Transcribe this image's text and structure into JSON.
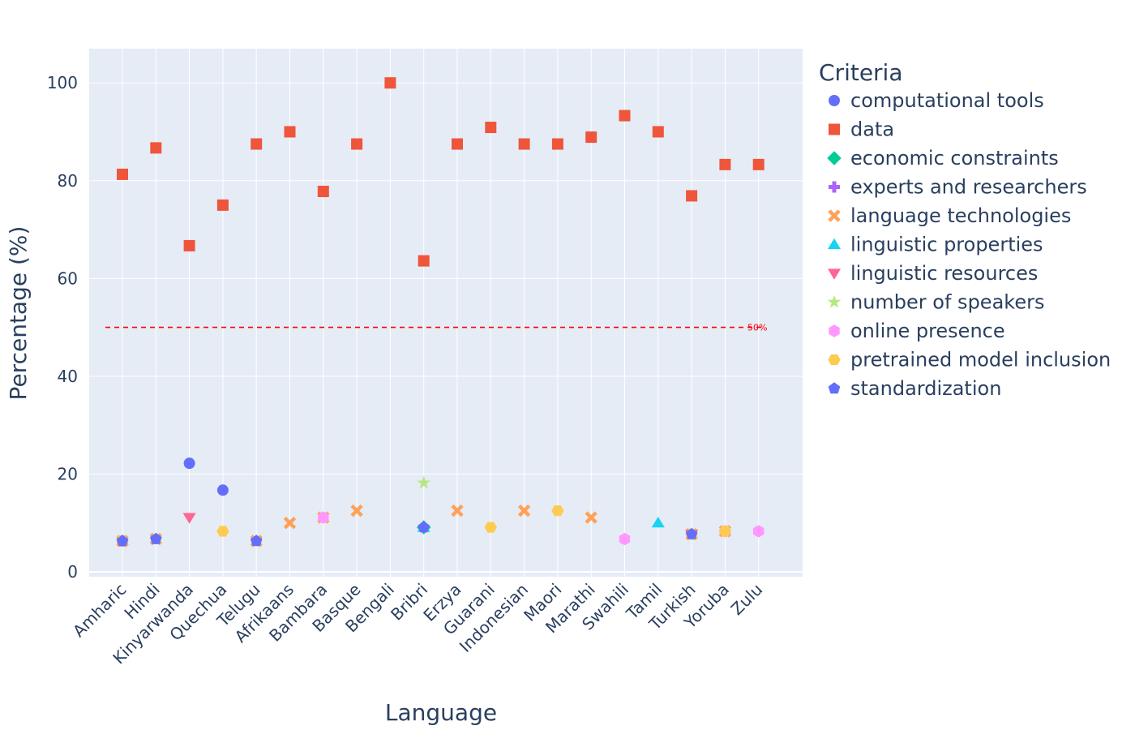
{
  "chart_data": {
    "type": "scatter",
    "title": "",
    "xlabel": "Language",
    "ylabel": "Percentage (%)",
    "ylim": [
      -1,
      107
    ],
    "yticks": [
      0,
      20,
      40,
      60,
      80,
      100
    ],
    "categories": [
      "Amharic",
      "Hindi",
      "Kinyarwanda",
      "Quechua",
      "Telugu",
      "Afrikaans",
      "Bambara",
      "Basque",
      "Bengali",
      "Bribri",
      "Erzya",
      "Guarani",
      "Indonesian",
      "Maori",
      "Marathi",
      "Swahili",
      "Tamil",
      "Turkish",
      "Yoruba",
      "Zulu"
    ],
    "reference_line": {
      "value": 50,
      "label": "50%",
      "color": "#ff0000"
    },
    "legend": {
      "title": "Criteria",
      "position": "right"
    },
    "series": [
      {
        "name": "computational tools",
        "symbol": "circle",
        "color": "#636efa",
        "points": [
          [
            "Amharic",
            6.3
          ],
          [
            "Kinyarwanda",
            22.2
          ],
          [
            "Quechua",
            16.7
          ]
        ]
      },
      {
        "name": "data",
        "symbol": "square",
        "color": "#ef553b",
        "points": [
          [
            "Amharic",
            81.3
          ],
          [
            "Hindi",
            86.7
          ],
          [
            "Kinyarwanda",
            66.7
          ],
          [
            "Quechua",
            75
          ],
          [
            "Telugu",
            87.5
          ],
          [
            "Afrikaans",
            90
          ],
          [
            "Bambara",
            77.8
          ],
          [
            "Basque",
            87.5
          ],
          [
            "Bengali",
            100
          ],
          [
            "Bribri",
            63.6
          ],
          [
            "Erzya",
            87.5
          ],
          [
            "Guarani",
            90.9
          ],
          [
            "Indonesian",
            87.5
          ],
          [
            "Maori",
            87.5
          ],
          [
            "Marathi",
            88.9
          ],
          [
            "Swahili",
            93.3
          ],
          [
            "Tamil",
            90
          ],
          [
            "Turkish",
            76.9
          ],
          [
            "Yoruba",
            83.3
          ],
          [
            "Zulu",
            83.3
          ]
        ]
      },
      {
        "name": "economic constraints",
        "symbol": "diamond",
        "color": "#00cc96",
        "points": [
          [
            "Bribri",
            9.1
          ]
        ]
      },
      {
        "name": "experts and researchers",
        "symbol": "cross",
        "color": "#ab63fa",
        "points": [
          [
            "Amharic",
            6.3
          ]
        ]
      },
      {
        "name": "language technologies",
        "symbol": "x",
        "color": "#ffa15a",
        "points": [
          [
            "Amharic",
            6.3
          ],
          [
            "Hindi",
            6.7
          ],
          [
            "Telugu",
            6.3
          ],
          [
            "Afrikaans",
            10
          ],
          [
            "Bambara",
            11.1
          ],
          [
            "Basque",
            12.5
          ],
          [
            "Erzya",
            12.5
          ],
          [
            "Indonesian",
            12.5
          ],
          [
            "Marathi",
            11.1
          ],
          [
            "Turkish",
            7.7
          ],
          [
            "Yoruba",
            8.3
          ]
        ]
      },
      {
        "name": "linguistic properties",
        "symbol": "triangle-up",
        "color": "#19d3f3",
        "points": [
          [
            "Bribri",
            9.1
          ],
          [
            "Tamil",
            10
          ]
        ]
      },
      {
        "name": "linguistic resources",
        "symbol": "triangle-down",
        "color": "#ff6692",
        "points": [
          [
            "Kinyarwanda",
            11.1
          ],
          [
            "Turkish",
            7.7
          ]
        ]
      },
      {
        "name": "number of speakers",
        "symbol": "star",
        "color": "#b6e880",
        "points": [
          [
            "Bribri",
            18.2
          ]
        ]
      },
      {
        "name": "online presence",
        "symbol": "hexagon",
        "color": "#ff97ff",
        "points": [
          [
            "Bambara",
            11.1
          ],
          [
            "Swahili",
            6.7
          ],
          [
            "Yoruba",
            8.3
          ],
          [
            "Zulu",
            8.3
          ]
        ]
      },
      {
        "name": "pretrained model inclusion",
        "symbol": "hexagon2",
        "color": "#fecb52",
        "points": [
          [
            "Amharic",
            6.3
          ],
          [
            "Quechua",
            8.3
          ],
          [
            "Guarani",
            9.1
          ],
          [
            "Maori",
            12.5
          ],
          [
            "Turkish",
            7.7
          ],
          [
            "Yoruba",
            8.3
          ]
        ]
      },
      {
        "name": "standardization",
        "symbol": "pentagon",
        "color": "#636efa",
        "points": [
          [
            "Amharic",
            6.3
          ],
          [
            "Hindi",
            6.7
          ],
          [
            "Telugu",
            6.3
          ],
          [
            "Bribri",
            9.1
          ],
          [
            "Turkish",
            7.7
          ]
        ]
      }
    ]
  }
}
